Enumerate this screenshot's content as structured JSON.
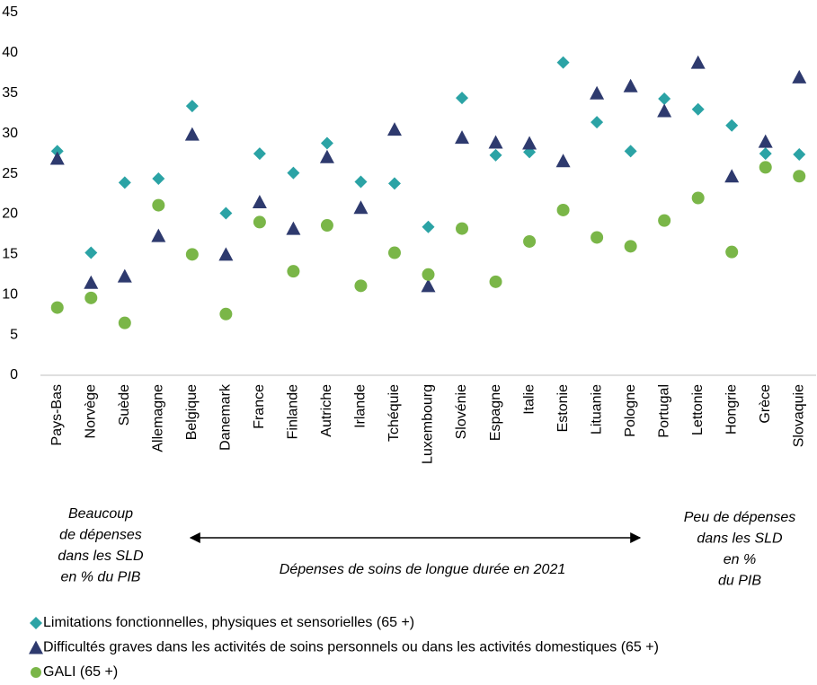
{
  "chart_data": {
    "type": "scatter",
    "categories": [
      "Pays-Bas",
      "Norvège",
      "Suède",
      "Allemagne",
      "Belgique",
      "Danemark",
      "France",
      "Finlande",
      "Autriche",
      "Irlande",
      "Tchéquie",
      "Luxembourg",
      "Slovénie",
      "Espagne",
      "Italie",
      "Estonie",
      "Lituanie",
      "Pologne",
      "Portugal",
      "Lettonie",
      "Hongrie",
      "Grèce",
      "Slovaquie"
    ],
    "series": [
      {
        "name": "Limitations fonctionnelles, physiques et sensorielles (65 +)",
        "color": "#2ba3a5",
        "marker": "diamond",
        "values": [
          27.8,
          15.2,
          23.9,
          24.4,
          33.4,
          20.1,
          27.5,
          25.1,
          28.8,
          24.0,
          23.8,
          18.4,
          34.4,
          27.3,
          27.7,
          38.8,
          31.4,
          27.8,
          34.3,
          33.0,
          31.0,
          27.5,
          27.4
        ]
      },
      {
        "name": "Difficultés graves dans les activités de soins personnels ou dans les activités domestiques (65 +)",
        "color": "#2e3a6e",
        "marker": "triangle",
        "values": [
          26.9,
          11.5,
          12.3,
          17.3,
          29.9,
          15.0,
          21.5,
          18.2,
          27.1,
          20.8,
          30.5,
          11.1,
          29.5,
          28.9,
          28.8,
          26.6,
          35.0,
          35.9,
          32.8,
          38.8,
          24.7,
          29.0,
          37.0
        ]
      },
      {
        "name": "GALI (65 +)",
        "color": "#7ab648",
        "marker": "circle",
        "values": [
          8.4,
          9.6,
          6.5,
          21.1,
          15.0,
          7.6,
          19.0,
          12.9,
          18.6,
          11.1,
          15.2,
          12.5,
          18.2,
          11.6,
          16.6,
          20.5,
          17.1,
          16.0,
          19.2,
          22.0,
          15.3,
          25.8,
          24.7
        ]
      }
    ],
    "ylim": [
      0,
      45
    ],
    "yticks": [
      0,
      5,
      10,
      15,
      20,
      25,
      30,
      35,
      40,
      45
    ],
    "grid": false,
    "annotations": {
      "left": [
        "Beaucoup",
        "de dépenses",
        "dans les SLD",
        "en % du PIB"
      ],
      "right": [
        "Peu de dépenses",
        "dans les SLD",
        "en %",
        "du PIB"
      ],
      "center": "Dépenses de soins de longue durée en 2021"
    }
  }
}
